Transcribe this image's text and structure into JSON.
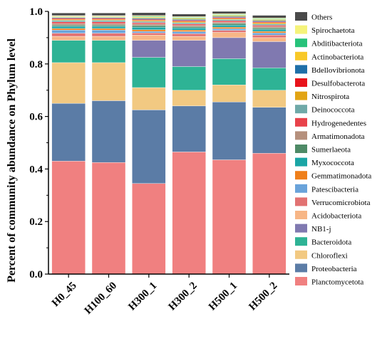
{
  "chart_data": {
    "type": "bar",
    "stacked": true,
    "title": "",
    "xlabel": "",
    "ylabel": "Percent of community abundance on Phylum level",
    "ylim": [
      0,
      1.0
    ],
    "yticks": [
      "0.0",
      "0.2",
      "0.4",
      "0.6",
      "0.8",
      "1.0"
    ],
    "grid": false,
    "legend_position": "right",
    "categories": [
      "H0_45",
      "H100_60",
      "H300_1",
      "H300_2",
      "H500_1",
      "H500_2"
    ],
    "series": [
      {
        "name": "Planctomycetota",
        "color": "#F08080",
        "values": [
          0.43,
          0.425,
          0.345,
          0.465,
          0.435,
          0.46
        ]
      },
      {
        "name": "Proteobacteria",
        "color": "#5B7CA6",
        "values": [
          0.22,
          0.235,
          0.28,
          0.175,
          0.22,
          0.175
        ]
      },
      {
        "name": "Chloroflexi",
        "color": "#F2C982",
        "values": [
          0.155,
          0.145,
          0.085,
          0.06,
          0.065,
          0.065
        ]
      },
      {
        "name": "Bacteroidota",
        "color": "#2EB395",
        "values": [
          0.085,
          0.085,
          0.115,
          0.09,
          0.1,
          0.085
        ]
      },
      {
        "name": "NB1-j",
        "color": "#8079B0",
        "values": [
          0.0,
          0.0,
          0.065,
          0.1,
          0.08,
          0.1
        ]
      },
      {
        "name": "Acidobacteriota",
        "color": "#F7B686",
        "values": [
          0.015,
          0.015,
          0.02,
          0.015,
          0.02,
          0.015
        ]
      },
      {
        "name": "Verrucomicrobiota",
        "color": "#E27272",
        "values": [
          0.012,
          0.012,
          0.008,
          0.01,
          0.008,
          0.01
        ]
      },
      {
        "name": "Patescibacteria",
        "color": "#6AA3DA",
        "values": [
          0.012,
          0.012,
          0.006,
          0.008,
          0.006,
          0.008
        ]
      },
      {
        "name": "Gemmatimonadota",
        "color": "#EF7F1A",
        "values": [
          0.006,
          0.006,
          0.006,
          0.006,
          0.006,
          0.006
        ]
      },
      {
        "name": "Myxococcota",
        "color": "#1AA5A5",
        "values": [
          0.008,
          0.008,
          0.01,
          0.008,
          0.008,
          0.008
        ]
      },
      {
        "name": "Sumerlaeota",
        "color": "#4E8A66",
        "values": [
          0.005,
          0.005,
          0.006,
          0.005,
          0.006,
          0.005
        ]
      },
      {
        "name": "Armatimonadota",
        "color": "#B5907C",
        "values": [
          0.006,
          0.006,
          0.006,
          0.005,
          0.005,
          0.005
        ]
      },
      {
        "name": "Hydrogenedentes",
        "color": "#E8424A",
        "values": [
          0.006,
          0.006,
          0.005,
          0.005,
          0.005,
          0.005
        ]
      },
      {
        "name": "Deinococcota",
        "color": "#6FA9A8",
        "values": [
          0.006,
          0.006,
          0.005,
          0.005,
          0.005,
          0.005
        ]
      },
      {
        "name": "Nitrospirota",
        "color": "#E2A414",
        "values": [
          0.004,
          0.004,
          0.004,
          0.005,
          0.004,
          0.005
        ]
      },
      {
        "name": "Desulfobacterota",
        "color": "#E8131B",
        "values": [
          0.004,
          0.004,
          0.004,
          0.004,
          0.004,
          0.004
        ]
      },
      {
        "name": "Bdellovibrionota",
        "color": "#1E6FA8",
        "values": [
          0.003,
          0.003,
          0.004,
          0.004,
          0.004,
          0.004
        ]
      },
      {
        "name": "Actinobacteriota",
        "color": "#F8C828",
        "values": [
          0.003,
          0.003,
          0.004,
          0.004,
          0.004,
          0.004
        ]
      },
      {
        "name": "Abditibacteriota",
        "color": "#27C27A",
        "values": [
          0.002,
          0.002,
          0.003,
          0.003,
          0.003,
          0.003
        ]
      },
      {
        "name": "Spirochaetota",
        "color": "#F5F37A",
        "values": [
          0.002,
          0.002,
          0.003,
          0.003,
          0.003,
          0.003
        ]
      },
      {
        "name": "Others",
        "color": "#4A4A4A",
        "values": [
          0.01,
          0.01,
          0.011,
          0.01,
          0.009,
          0.01
        ]
      }
    ]
  }
}
